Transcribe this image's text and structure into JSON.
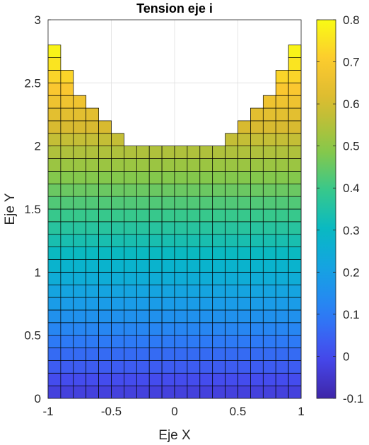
{
  "chart_data": {
    "type": "heatmap",
    "title": "Tension eje i",
    "xlabel": "Eje X",
    "ylabel": "Eje Y",
    "xlim": [
      -1,
      1
    ],
    "ylim": [
      0,
      3
    ],
    "x_ticks": [
      "-1",
      "-0.5",
      "0",
      "0.5",
      "1"
    ],
    "y_ticks": [
      "0",
      "0.5",
      "1",
      "1.5",
      "2",
      "2.5",
      "3"
    ],
    "grid": true,
    "cell_size": 0.1,
    "columns": {
      "x_left": [
        -1.0,
        -0.9,
        -0.8,
        -0.7,
        -0.6,
        -0.5,
        -0.4,
        -0.3,
        -0.2,
        -0.1,
        0.0,
        0.1,
        0.2,
        0.3,
        0.4,
        0.5,
        0.6,
        0.7,
        0.8,
        0.9
      ],
      "y_top": [
        2.8,
        2.6,
        2.4,
        2.3,
        2.2,
        2.1,
        2.0,
        2.0,
        2.0,
        2.0,
        2.0,
        2.0,
        2.0,
        2.0,
        2.1,
        2.2,
        2.3,
        2.4,
        2.6,
        2.8
      ]
    },
    "value_model": {
      "value_at_y0": -0.04,
      "value_per_unit_y": 0.3
    },
    "colorbar": {
      "colormap": "parula",
      "range": [
        -0.1,
        0.8
      ],
      "ticks": [
        "-0.1",
        "0",
        "0.1",
        "0.2",
        "0.3",
        "0.4",
        "0.5",
        "0.6",
        "0.7",
        "0.8"
      ]
    }
  }
}
